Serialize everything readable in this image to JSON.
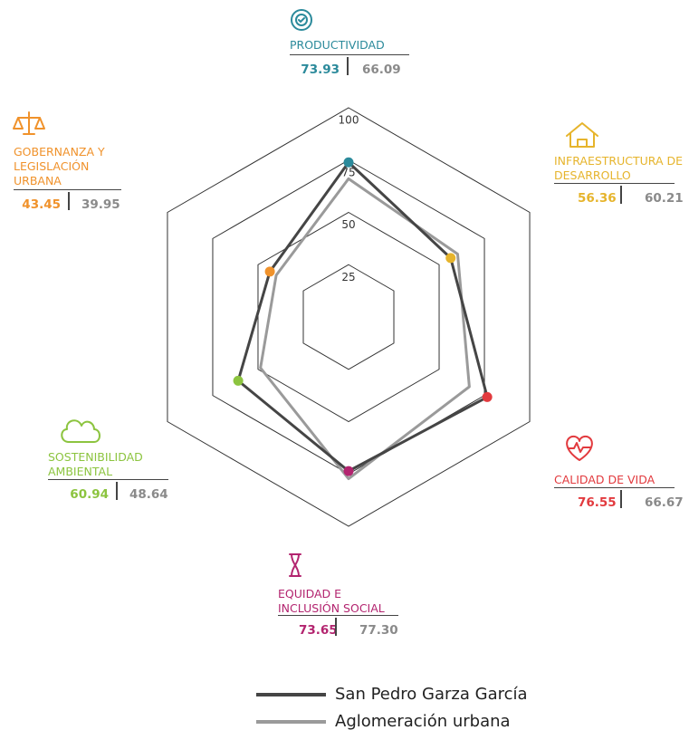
{
  "chart_data": {
    "type": "radar",
    "categories": [
      "PRODUCTIVIDAD",
      "INFRAESTRUCTURA DE DESARROLLO",
      "CALIDAD DE VIDA",
      "EQUIDAD E INCLUSIÓN SOCIAL",
      "SOSTENIBILIDAD AMBIENTAL",
      "GOBERNANZA Y LEGISLACIÓN URBANA"
    ],
    "category_colors": [
      "#2b8a9b",
      "#e6b42c",
      "#e23a3e",
      "#b3246f",
      "#8cc43f",
      "#f0922b"
    ],
    "series": [
      {
        "name": "San Pedro Garza García",
        "color": "#454545",
        "values": [
          73.93,
          56.36,
          76.55,
          73.65,
          60.94,
          43.45
        ],
        "value_labels": [
          "73.93",
          "56.36",
          "76.55",
          "73.65",
          "60.94",
          "43.45"
        ]
      },
      {
        "name": "Aglomeración urbana",
        "color": "#9a9a9a",
        "values": [
          66.09,
          60.21,
          66.67,
          77.3,
          48.64,
          39.95
        ],
        "value_labels": [
          "66.09",
          "60.21",
          "66.67",
          "77.30",
          "48.64",
          "39.95"
        ]
      }
    ],
    "rlim": [
      0,
      100
    ],
    "rticks": [
      25,
      50,
      75,
      100
    ]
  }
}
